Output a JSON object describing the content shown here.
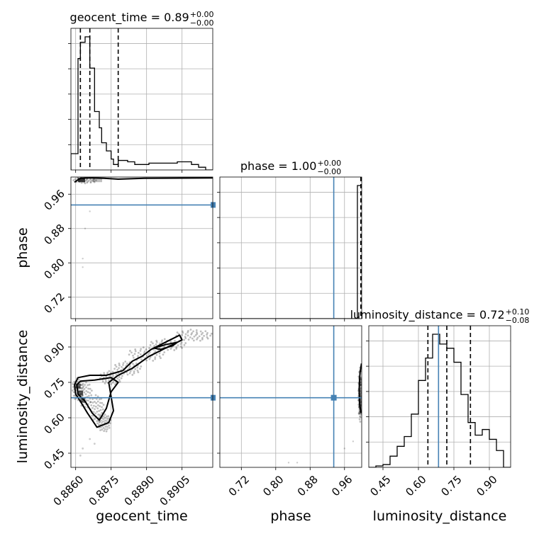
{
  "chart_data": {
    "type": "corner",
    "parameters": [
      "geocent_time",
      "phase",
      "luminosity_distance"
    ],
    "colors": {
      "truth": "#4682b4",
      "hist": "#000000",
      "grid": "#b0b0b0",
      "density": "#000000"
    },
    "titles": [
      {
        "text": "geocent_time = 0.89",
        "sup": "+0.00",
        "sub": "−0.00"
      },
      {
        "text": "phase = 1.00",
        "sup": "+0.00",
        "sub": "−0.00"
      },
      {
        "text": "luminosity_distance = 0.72",
        "sup": "+0.10",
        "sub": "−0.08"
      }
    ],
    "ranges": [
      [
        0.8858,
        0.8918
      ],
      [
        0.67,
        1.0
      ],
      [
        0.39,
        0.99
      ]
    ],
    "ticks": [
      {
        "values": [
          0.886,
          0.8875,
          0.889,
          0.8905
        ],
        "labels": [
          "0.8860",
          "0.8875",
          "0.8890",
          "0.8905"
        ]
      },
      {
        "values": [
          0.72,
          0.8,
          0.88,
          0.96
        ],
        "labels": [
          "0.72",
          "0.80",
          "0.88",
          "0.96"
        ]
      },
      {
        "values": [
          0.45,
          0.6,
          0.75,
          0.9
        ],
        "labels": [
          "0.45",
          "0.60",
          "0.75",
          "0.90"
        ]
      }
    ],
    "truths": [
      null,
      0.935,
      0.685
    ],
    "quantiles": [
      [
        0.8862,
        0.8866,
        0.8878
      ],
      [
        0.998,
        0.999,
        1.0
      ],
      [
        0.64,
        0.72,
        0.82
      ]
    ],
    "histograms": [
      {
        "edges": [
          0.8858,
          0.8861,
          0.8862,
          0.8864,
          0.8866,
          0.8868,
          0.887,
          0.8871,
          0.8873,
          0.8875,
          0.8876,
          0.8878,
          0.8882,
          0.8885,
          0.8891,
          0.8897,
          0.8903,
          0.8909,
          0.8912,
          0.8915,
          0.8918
        ],
        "values": [
          0.12,
          0.82,
          0.94,
          0.98,
          0.75,
          0.43,
          0.31,
          0.2,
          0.14,
          0.08,
          0.04,
          0.07,
          0.06,
          0.04,
          0.05,
          0.05,
          0.06,
          0.04,
          0.02,
          0.0
        ]
      },
      {
        "edges": [
          0.67,
          0.99,
          0.996,
          1.0
        ],
        "values": [
          0.0,
          1.0,
          1.0
        ]
      },
      {
        "edges": [
          0.39,
          0.42,
          0.45,
          0.48,
          0.51,
          0.54,
          0.57,
          0.6,
          0.63,
          0.66,
          0.69,
          0.72,
          0.75,
          0.78,
          0.81,
          0.84,
          0.87,
          0.9,
          0.93,
          0.96,
          0.99
        ],
        "values": [
          0.0,
          0.01,
          0.02,
          0.08,
          0.15,
          0.22,
          0.38,
          0.62,
          0.78,
          0.95,
          0.88,
          0.85,
          0.75,
          0.52,
          0.32,
          0.23,
          0.27,
          0.2,
          0.12,
          0.0
        ]
      }
    ],
    "contours": [
      {
        "panel": "luminosity_distance_vs_geocent_time",
        "x": "geocent_time",
        "y": "luminosity_distance",
        "levels": [
          [
            [
              0.88595,
              0.74
            ],
            [
              0.8861,
              0.77
            ],
            [
              0.8866,
              0.78
            ],
            [
              0.8873,
              0.78
            ],
            [
              0.888,
              0.8
            ],
            [
              0.8884,
              0.84
            ],
            [
              0.8888,
              0.86
            ],
            [
              0.8892,
              0.89
            ],
            [
              0.8898,
              0.92
            ],
            [
              0.8904,
              0.95
            ],
            [
              0.8905,
              0.93
            ],
            [
              0.8899,
              0.9
            ],
            [
              0.8891,
              0.86
            ],
            [
              0.8884,
              0.81
            ],
            [
              0.8878,
              0.78
            ],
            [
              0.8874,
              0.75
            ],
            [
              0.8876,
              0.63
            ],
            [
              0.8874,
              0.58
            ],
            [
              0.8869,
              0.56
            ],
            [
              0.8865,
              0.62
            ],
            [
              0.8862,
              0.67
            ],
            [
              0.886,
              0.7
            ],
            [
              0.88595,
              0.74
            ]
          ],
          [
            [
              0.88605,
              0.74
            ],
            [
              0.8862,
              0.755
            ],
            [
              0.8868,
              0.76
            ],
            [
              0.8875,
              0.77
            ],
            [
              0.8878,
              0.75
            ],
            [
              0.8875,
              0.71
            ],
            [
              0.8873,
              0.64
            ],
            [
              0.887,
              0.59
            ],
            [
              0.8867,
              0.62
            ],
            [
              0.8864,
              0.67
            ],
            [
              0.8861,
              0.7
            ],
            [
              0.88605,
              0.74
            ]
          ],
          [
            [
              0.8893,
              0.895
            ],
            [
              0.8898,
              0.91
            ],
            [
              0.8903,
              0.92
            ],
            [
              0.8901,
              0.905
            ],
            [
              0.8896,
              0.89
            ],
            [
              0.8893,
              0.895
            ]
          ]
        ]
      },
      {
        "panel": "phase_vs_geocent_time",
        "x": "geocent_time",
        "y": "phase",
        "levels": [
          [
            [
              0.88595,
              0.988
            ],
            [
              0.8862,
              0.997
            ],
            [
              0.8867,
              0.998
            ],
            [
              0.8872,
              0.997
            ],
            [
              0.8878,
              0.995
            ],
            [
              0.8889,
              0.997
            ],
            [
              0.8918,
              0.998
            ]
          ]
        ]
      },
      {
        "panel": "luminosity_distance_vs_phase",
        "x": "phase",
        "y": "luminosity_distance",
        "levels": [
          [
            [
              0.9985,
              0.62
            ],
            [
              0.995,
              0.66
            ],
            [
              0.994,
              0.72
            ],
            [
              0.996,
              0.79
            ],
            [
              0.9995,
              0.83
            ]
          ]
        ]
      }
    ]
  }
}
